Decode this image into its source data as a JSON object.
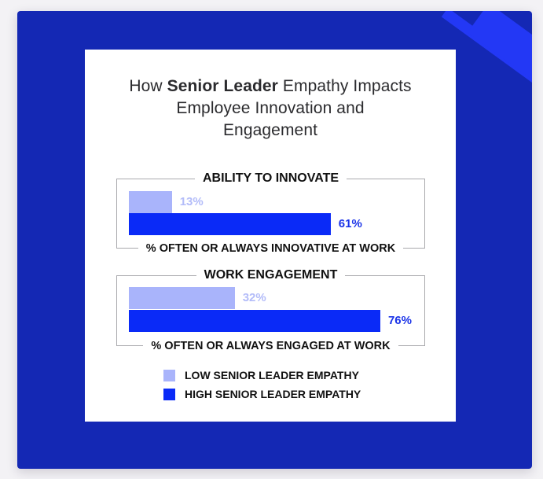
{
  "title": {
    "prefix": "How ",
    "bold": "Senior Leader",
    "suffix_line1": " Empathy Impacts",
    "line2": "Employee Innovation and",
    "line3": "Engagement"
  },
  "sections": [
    {
      "heading": "ABILITY TO INNOVATE",
      "caption": "% OFTEN OR ALWAYS INNOVATIVE AT WORK",
      "low_label": "13%",
      "high_label": "61%"
    },
    {
      "heading": "WORK ENGAGEMENT",
      "caption": "% OFTEN OR ALWAYS ENGAGED AT WORK",
      "low_label": "32%",
      "high_label": "76%"
    }
  ],
  "legend": {
    "low": "LOW SENIOR LEADER EMPATHY",
    "high": "HIGH SENIOR LEADER EMPATHY"
  },
  "colors": {
    "panel": "#1428b4",
    "stripe": "#2338f5",
    "low": "#a9b4fb",
    "high": "#0a2af7",
    "low_text": "#b3bcf9",
    "high_text": "#1a33e8"
  },
  "chart_data": {
    "type": "bar",
    "orientation": "horizontal",
    "title": "How Senior Leader Empathy Impacts Employee Innovation and Engagement",
    "categories": [
      "Ability to Innovate",
      "Work Engagement"
    ],
    "category_captions": [
      "% Often or Always Innovative at Work",
      "% Often or Always Engaged at Work"
    ],
    "series": [
      {
        "name": "Low Senior Leader Empathy",
        "values": [
          13,
          32
        ],
        "color": "#a9b4fb"
      },
      {
        "name": "High Senior Leader Empathy",
        "values": [
          61,
          76
        ],
        "color": "#0a2af7"
      }
    ],
    "unit": "%",
    "xlim": [
      0,
      100
    ],
    "grid": false,
    "legend_position": "bottom"
  }
}
